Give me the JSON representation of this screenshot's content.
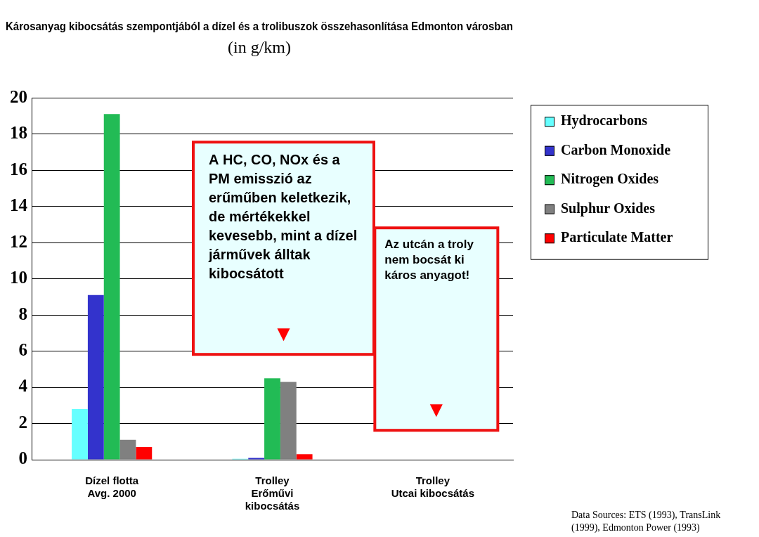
{
  "chart_data": {
    "type": "bar",
    "title": "Károsanyag kibocsátás szempontjából a dízel és a trolibuszok összehasonlítása Edmonton városban",
    "subtitle": "(in g/km)",
    "categories": [
      [
        "Dízel flotta",
        "Avg. 2000"
      ],
      [
        "Trolley",
        "Erőművi",
        "kibocsátás"
      ],
      [
        "Trolley",
        "Utcai kibocsátás"
      ]
    ],
    "series": [
      {
        "name": "Hydrocarbons",
        "color": "#66ffff",
        "values": [
          2.8,
          0.05,
          0
        ]
      },
      {
        "name": "Carbon Monoxide",
        "color": "#3333cc",
        "values": [
          9.1,
          0.1,
          0
        ]
      },
      {
        "name": "Nitrogen Oxides",
        "color": "#22bb55",
        "values": [
          19.1,
          4.5,
          0
        ]
      },
      {
        "name": "Sulphur Oxides",
        "color": "#808080",
        "values": [
          1.1,
          4.3,
          0
        ]
      },
      {
        "name": "Particulate Matter",
        "color": "#ff0000",
        "values": [
          0.7,
          0.3,
          0
        ]
      }
    ],
    "ylim": [
      0,
      20
    ],
    "yticks": [
      0,
      2,
      4,
      6,
      8,
      10,
      12,
      14,
      16,
      18,
      20
    ],
    "grid": true,
    "legend": "right",
    "annotations": [
      "A HC, CO, NOx és a PM emisszió az erűműben keletkezik, de mértékekkel kevesebb, mint a dízel járművek álltak kibocsátott",
      "Az utcán a troly nem bocsát ki káros anyagot!"
    ],
    "source": "Data Sources:  ETS (1993), TransLink (1999), Edmonton Power (1993)"
  }
}
